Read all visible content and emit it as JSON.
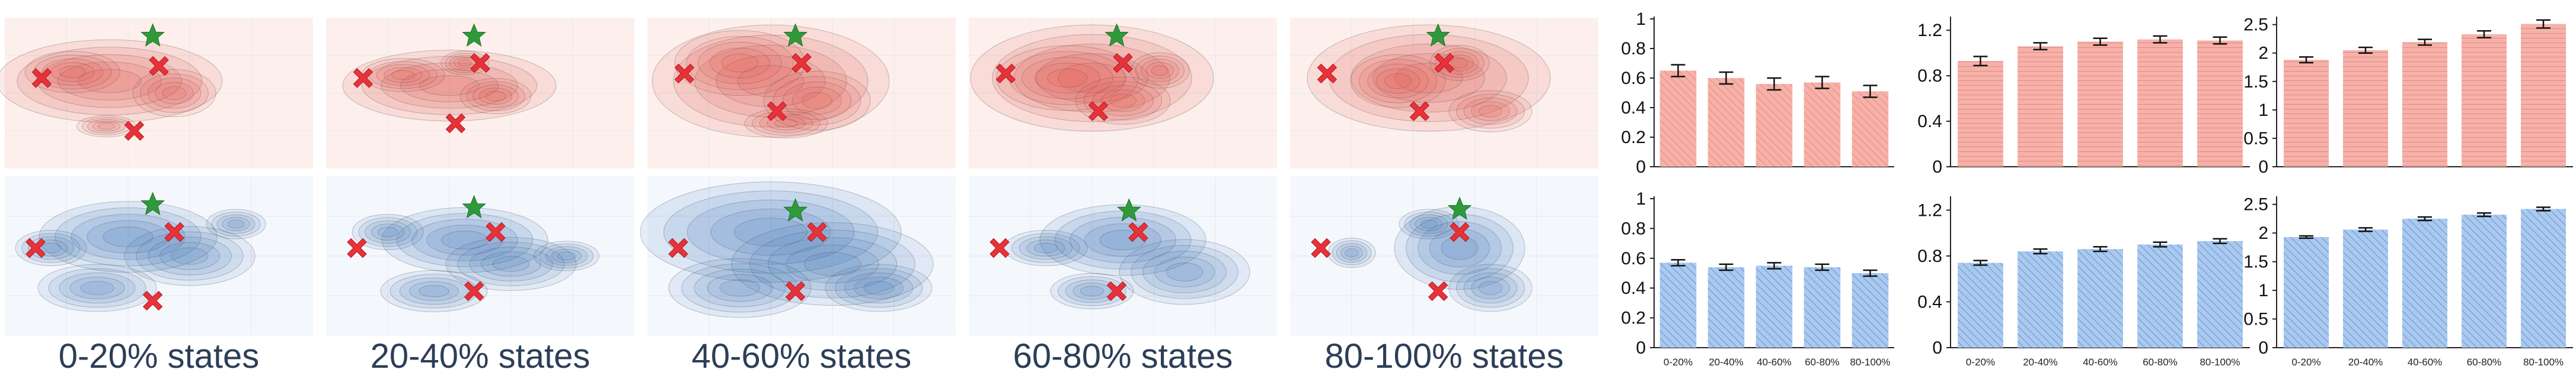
{
  "panel_labels": [
    "0-20% states",
    "20-40% states",
    "40-60% states",
    "60-80% states",
    "80-100% states"
  ],
  "colors": {
    "red_fill": "#f5aba4",
    "red_dark": "#d9534f",
    "red_bg": "#fdf0ec",
    "blue_fill": "#a9c9ee",
    "blue_dark": "#3f7fbf",
    "blue_bg": "#f4f8fd",
    "marker_x": "#e8323a",
    "marker_star": "#2f9a3a"
  },
  "chart_data": [
    {
      "type": "bar",
      "row": "top",
      "column": 1,
      "categories": [
        "0-20%",
        "20-40%",
        "40-60%",
        "60-80%",
        "80-100%"
      ],
      "values": [
        0.65,
        0.6,
        0.56,
        0.57,
        0.51
      ],
      "errors": [
        0.04,
        0.04,
        0.04,
        0.04,
        0.04
      ],
      "ylim": [
        0,
        1
      ],
      "yticks": [
        "0",
        "0.2",
        "0.4",
        "0.6",
        "0.8",
        "1"
      ],
      "ytick_values": [
        0,
        0.2,
        0.4,
        0.6,
        0.8,
        1
      ],
      "color": "red",
      "show_xticks": false
    },
    {
      "type": "bar",
      "row": "top",
      "column": 2,
      "categories": [
        "0-20%",
        "20-40%",
        "40-60%",
        "60-80%",
        "80-100%"
      ],
      "values": [
        0.93,
        1.06,
        1.1,
        1.12,
        1.11
      ],
      "errors": [
        0.04,
        0.03,
        0.03,
        0.03,
        0.03
      ],
      "ylim": [
        0,
        1.3
      ],
      "yticks": [
        "0",
        "0.4",
        "0.8",
        "1.2"
      ],
      "ytick_values": [
        0,
        0.4,
        0.8,
        1.2
      ],
      "color": "red",
      "show_xticks": false
    },
    {
      "type": "bar",
      "row": "top",
      "column": 3,
      "categories": [
        "0-20%",
        "20-40%",
        "40-60%",
        "60-80%",
        "80-100%"
      ],
      "values": [
        1.88,
        2.05,
        2.19,
        2.33,
        2.51
      ],
      "errors": [
        0.05,
        0.05,
        0.05,
        0.06,
        0.07
      ],
      "ylim": [
        0,
        2.6
      ],
      "yticks": [
        "0",
        "0.5",
        "1",
        "1.5",
        "2",
        "2.5"
      ],
      "ytick_values": [
        0,
        0.5,
        1,
        1.5,
        2,
        2.5
      ],
      "color": "red",
      "show_xticks": false
    },
    {
      "type": "bar",
      "row": "bottom",
      "column": 1,
      "categories": [
        "0-20%",
        "20-40%",
        "40-60%",
        "60-80%",
        "80-100%"
      ],
      "values": [
        0.57,
        0.54,
        0.55,
        0.54,
        0.5
      ],
      "errors": [
        0.02,
        0.02,
        0.02,
        0.02,
        0.02
      ],
      "ylim": [
        0,
        1
      ],
      "yticks": [
        "0",
        "0.2",
        "0.4",
        "0.6",
        "0.8",
        "1"
      ],
      "ytick_values": [
        0,
        0.2,
        0.4,
        0.6,
        0.8,
        1
      ],
      "color": "blue",
      "show_xticks": true
    },
    {
      "type": "bar",
      "row": "bottom",
      "column": 2,
      "categories": [
        "0-20%",
        "20-40%",
        "40-60%",
        "60-80%",
        "80-100%"
      ],
      "values": [
        0.74,
        0.84,
        0.86,
        0.9,
        0.93
      ],
      "errors": [
        0.02,
        0.02,
        0.02,
        0.02,
        0.02
      ],
      "ylim": [
        0,
        1.3
      ],
      "yticks": [
        "0",
        "0.4",
        "0.8",
        "1.2"
      ],
      "ytick_values": [
        0,
        0.4,
        0.8,
        1.2
      ],
      "color": "blue",
      "show_xticks": true
    },
    {
      "type": "bar",
      "row": "bottom",
      "column": 3,
      "categories": [
        "0-20%",
        "20-40%",
        "40-60%",
        "60-80%",
        "80-100%"
      ],
      "values": [
        1.93,
        2.06,
        2.25,
        2.32,
        2.42
      ],
      "errors": [
        0.02,
        0.03,
        0.03,
        0.03,
        0.03
      ],
      "ylim": [
        0,
        2.6
      ],
      "yticks": [
        "0",
        "0.5",
        "1",
        "1.5",
        "2",
        "2.5"
      ],
      "ytick_values": [
        0,
        0.5,
        1,
        1.5,
        2,
        2.5
      ],
      "color": "blue",
      "show_xticks": true
    }
  ]
}
